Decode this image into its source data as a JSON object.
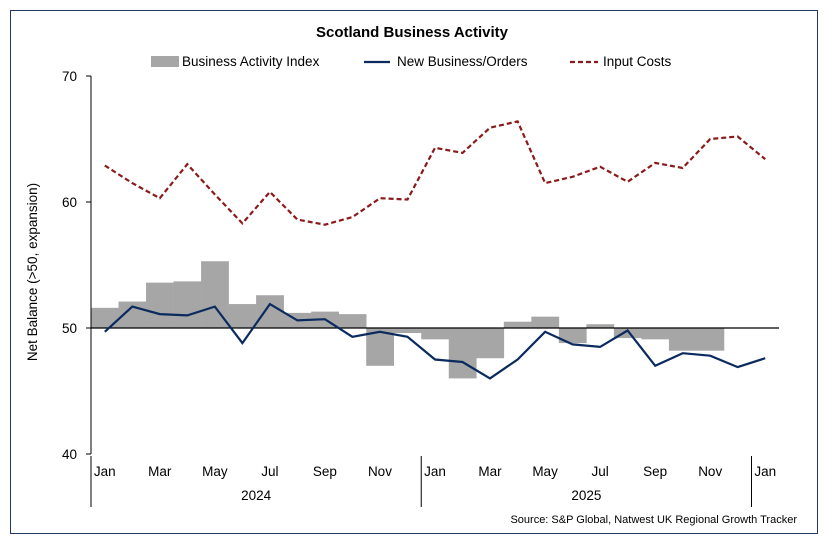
{
  "chart_data": {
    "type": "bar+line",
    "title": "Scotland Business Activity",
    "ylabel": "Net Balance (>50, expansion)",
    "ylim": [
      40,
      70
    ],
    "yticks": [
      "40",
      "50",
      "60",
      "70"
    ],
    "baseline": 50,
    "months": [
      "Jan",
      "Feb",
      "Mar",
      "Apr",
      "May",
      "Jun",
      "Jul",
      "Aug",
      "Sep",
      "Oct",
      "Nov",
      "Dec",
      "Jan",
      "Feb",
      "Mar",
      "Apr",
      "May",
      "Jun",
      "Jul",
      "Aug",
      "Sep",
      "Oct",
      "Nov",
      "Dec",
      "Jan"
    ],
    "xtick_labels": [
      "Jan",
      "Mar",
      "May",
      "Jul",
      "Sep",
      "Nov",
      "Jan",
      "Mar",
      "May",
      "Jul",
      "Sep",
      "Nov",
      "Jan"
    ],
    "year_labels": [
      "2024",
      "2025"
    ],
    "series": [
      {
        "name": "Business Activity Index",
        "type": "bar",
        "color": "#a6a6a6",
        "values": [
          51.6,
          52.1,
          53.6,
          53.7,
          55.3,
          51.9,
          52.6,
          51.2,
          51.3,
          51.1,
          47.0,
          49.6,
          49.1,
          46.0,
          47.6,
          50.5,
          50.9,
          48.8,
          50.3,
          49.2,
          49.1,
          48.2,
          48.2,
          50.0,
          50.0
        ]
      },
      {
        "name": "New Business/Orders",
        "type": "line",
        "style": "solid",
        "color": "#0b2a5e",
        "values": [
          49.7,
          51.7,
          51.1,
          51.0,
          51.7,
          48.8,
          51.9,
          50.6,
          50.7,
          49.3,
          49.7,
          49.3,
          47.5,
          47.3,
          46.0,
          47.5,
          49.7,
          48.7,
          48.5,
          49.8,
          47.0,
          48.0,
          47.8,
          46.9,
          47.6
        ]
      },
      {
        "name": "Input Costs",
        "type": "line",
        "style": "dashed",
        "color": "#8b1a1a",
        "values": [
          62.9,
          61.5,
          60.3,
          63.0,
          60.6,
          58.3,
          60.8,
          58.6,
          58.2,
          58.8,
          60.3,
          60.2,
          64.3,
          63.9,
          65.9,
          66.4,
          61.5,
          62.0,
          62.8,
          61.6,
          63.1,
          62.7,
          65.0,
          65.2,
          63.4
        ]
      }
    ],
    "legend_position": "top",
    "grid": false
  },
  "source": "Source: S&P Global, Natwest UK Regional Growth Tracker"
}
